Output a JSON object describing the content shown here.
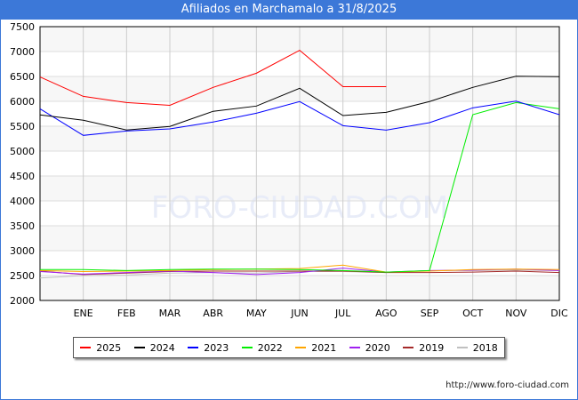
{
  "title": "Afiliados en Marchamalo a 31/8/2025",
  "footer_url": "http://www.foro-ciudad.com",
  "watermark": "FORO-CIUDAD.COM",
  "chart_data": {
    "type": "line",
    "title": "Afiliados en Marchamalo a 31/8/2025",
    "x": [
      "",
      "ENE",
      "FEB",
      "MAR",
      "ABR",
      "MAY",
      "JUN",
      "JUL",
      "AGO",
      "SEP",
      "OCT",
      "NOV",
      "DIC"
    ],
    "yticks": [
      2000,
      2500,
      3000,
      3500,
      4000,
      4500,
      5000,
      5500,
      6000,
      6500,
      7000,
      7500
    ],
    "ylim": [
      2000,
      7500
    ],
    "grid": true,
    "legend_position": "bottom",
    "series": [
      {
        "name": "2025",
        "color": "#ff0000",
        "values": [
          6490,
          6100,
          5975,
          5920,
          6280,
          6565,
          7025,
          6295,
          6295,
          null,
          null,
          null,
          null
        ]
      },
      {
        "name": "2024",
        "color": "#000000",
        "values": [
          5727,
          5620,
          5425,
          5495,
          5800,
          5905,
          6263,
          5714,
          5780,
          5995,
          6280,
          6505,
          6495
        ]
      },
      {
        "name": "2023",
        "color": "#0000ff",
        "values": [
          5850,
          5316,
          5405,
          5446,
          5584,
          5762,
          5995,
          5512,
          5423,
          5572,
          5869,
          6005,
          5732
        ]
      },
      {
        "name": "2022",
        "color": "#00ee00",
        "values": [
          2620,
          2620,
          2600,
          2620,
          2630,
          2630,
          2620,
          2600,
          2570,
          2600,
          5732,
          5975,
          5850
        ]
      },
      {
        "name": "2021",
        "color": "#ffa500",
        "values": [
          2600,
          2580,
          2590,
          2600,
          2620,
          2630,
          2640,
          2710,
          2570,
          2590,
          2620,
          2630,
          2620
        ]
      },
      {
        "name": "2020",
        "color": "#a020f0",
        "values": [
          2580,
          2530,
          2560,
          2590,
          2560,
          2520,
          2560,
          2650,
          2570,
          2600,
          2610,
          2630,
          2600
        ]
      },
      {
        "name": "2019",
        "color": "#a52a2a",
        "values": [
          2590,
          2520,
          2550,
          2580,
          2590,
          2590,
          2590,
          2590,
          2560,
          2560,
          2570,
          2590,
          2560
        ]
      },
      {
        "name": "2018",
        "color": "#c0c0c0",
        "values": [
          2450,
          2500,
          2510,
          2550,
          2560,
          2550,
          2580,
          2580,
          2560,
          2600,
          2600,
          2610,
          2600
        ]
      }
    ]
  }
}
